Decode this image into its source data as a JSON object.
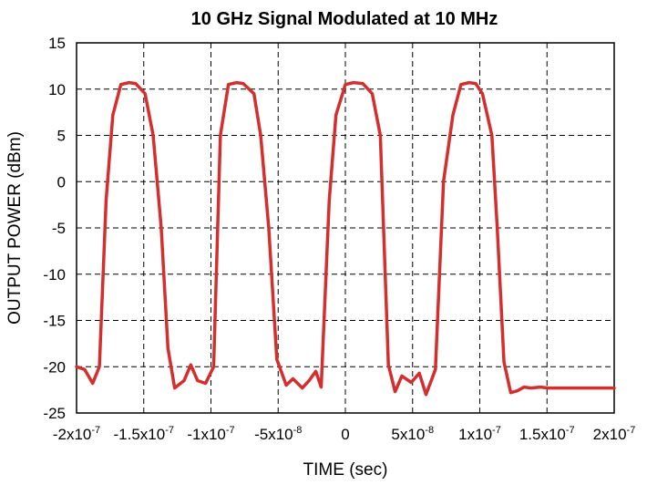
{
  "chart_data": {
    "type": "line",
    "title": "10 GHz Signal Modulated at 10 MHz",
    "xlabel": "TIME (sec)",
    "ylabel": "OUTPUT POWER (dBm)",
    "xlim": [
      -2e-07,
      2e-07
    ],
    "ylim": [
      -25,
      15
    ],
    "grid": true,
    "line_color": "#d32f2f",
    "x_ticks": [
      {
        "value": -2e-07,
        "label": "-2x10",
        "exp": "-7"
      },
      {
        "value": -1.5e-07,
        "label": "-1.5x10",
        "exp": "-7"
      },
      {
        "value": -1e-07,
        "label": "-1x10",
        "exp": "-7"
      },
      {
        "value": -5e-08,
        "label": "-5x10",
        "exp": "-8"
      },
      {
        "value": 0,
        "label": "0",
        "exp": ""
      },
      {
        "value": 5e-08,
        "label": "5x10",
        "exp": "-8"
      },
      {
        "value": 1e-07,
        "label": "1x10",
        "exp": "-7"
      },
      {
        "value": 1.5e-07,
        "label": "1.5x10",
        "exp": "-7"
      },
      {
        "value": 2e-07,
        "label": "2x10",
        "exp": "-7"
      }
    ],
    "y_ticks": [
      {
        "value": 15,
        "label": "15"
      },
      {
        "value": 10,
        "label": "10"
      },
      {
        "value": 5,
        "label": "5"
      },
      {
        "value": 0,
        "label": "0"
      },
      {
        "value": -5,
        "label": "-5"
      },
      {
        "value": -10,
        "label": "-10"
      },
      {
        "value": -15,
        "label": "-15"
      },
      {
        "value": -20,
        "label": "-20"
      },
      {
        "value": -25,
        "label": "-25"
      }
    ],
    "series": [
      {
        "x": [
          -2e-07,
          -1.94e-07,
          -1.88e-07,
          -1.83e-07,
          -1.78e-07,
          -1.73e-07,
          -1.67e-07,
          -1.61e-07,
          -1.56e-07,
          -1.49e-07,
          -1.43e-07,
          -1.37e-07,
          -1.32e-07,
          -1.27e-07,
          -1.2e-07,
          -1.15e-07,
          -1.1e-07,
          -1.04e-07,
          -9.8e-08,
          -9.3e-08,
          -8.7e-08,
          -8.1e-08,
          -7.6e-08,
          -6.8e-08,
          -6.3e-08,
          -5.7e-08,
          -5.1e-08,
          -4.4e-08,
          -3.9e-08,
          -3.2e-08,
          -2.7e-08,
          -2.2e-08,
          -1.8e-08,
          -1.2e-08,
          -7e-09,
          0,
          6e-09,
          1.3e-08,
          2e-08,
          2.6e-08,
          3.2e-08,
          3.7e-08,
          4.2e-08,
          4.9e-08,
          5.5e-08,
          6e-08,
          6.7e-08,
          7.3e-08,
          8e-08,
          8.6e-08,
          9.2e-08,
          9.7e-08,
          1.02e-07,
          1.09e-07,
          1.13e-07,
          1.18e-07,
          1.23e-07,
          1.28e-07,
          1.33e-07,
          1.38e-07,
          1.45e-07,
          1.51e-07,
          1.56e-07,
          1.61e-07,
          1.67e-07,
          1.72e-07,
          1.77e-07,
          1.85e-07,
          1.94e-07,
          2e-07
        ],
        "y": [
          -20,
          -20.3,
          -21.8,
          -20,
          -2,
          7.2,
          10.5,
          10.7,
          10.6,
          9.5,
          5,
          -5,
          -18,
          -22.3,
          -21.5,
          -19.8,
          -21.5,
          -21.8,
          -20,
          5,
          10.5,
          10.7,
          10.6,
          9.5,
          5,
          -5,
          -19.2,
          -22,
          -21.3,
          -22.3,
          -21.5,
          -20.5,
          -22.2,
          -2,
          7.2,
          10.5,
          10.7,
          10.6,
          9.5,
          5,
          -19.8,
          -22.7,
          -21,
          -21.7,
          -20.7,
          -23,
          -20.3,
          0,
          7.2,
          10.5,
          10.7,
          10.6,
          9.5,
          5,
          -5,
          -19.5,
          -22.8,
          -22.6,
          -22.2,
          -22.3,
          -22.2,
          -22.3,
          -22.3,
          -22.3,
          -22.3,
          -22.3,
          -22.3,
          -22.3,
          -22.3,
          -22.3
        ]
      }
    ]
  }
}
